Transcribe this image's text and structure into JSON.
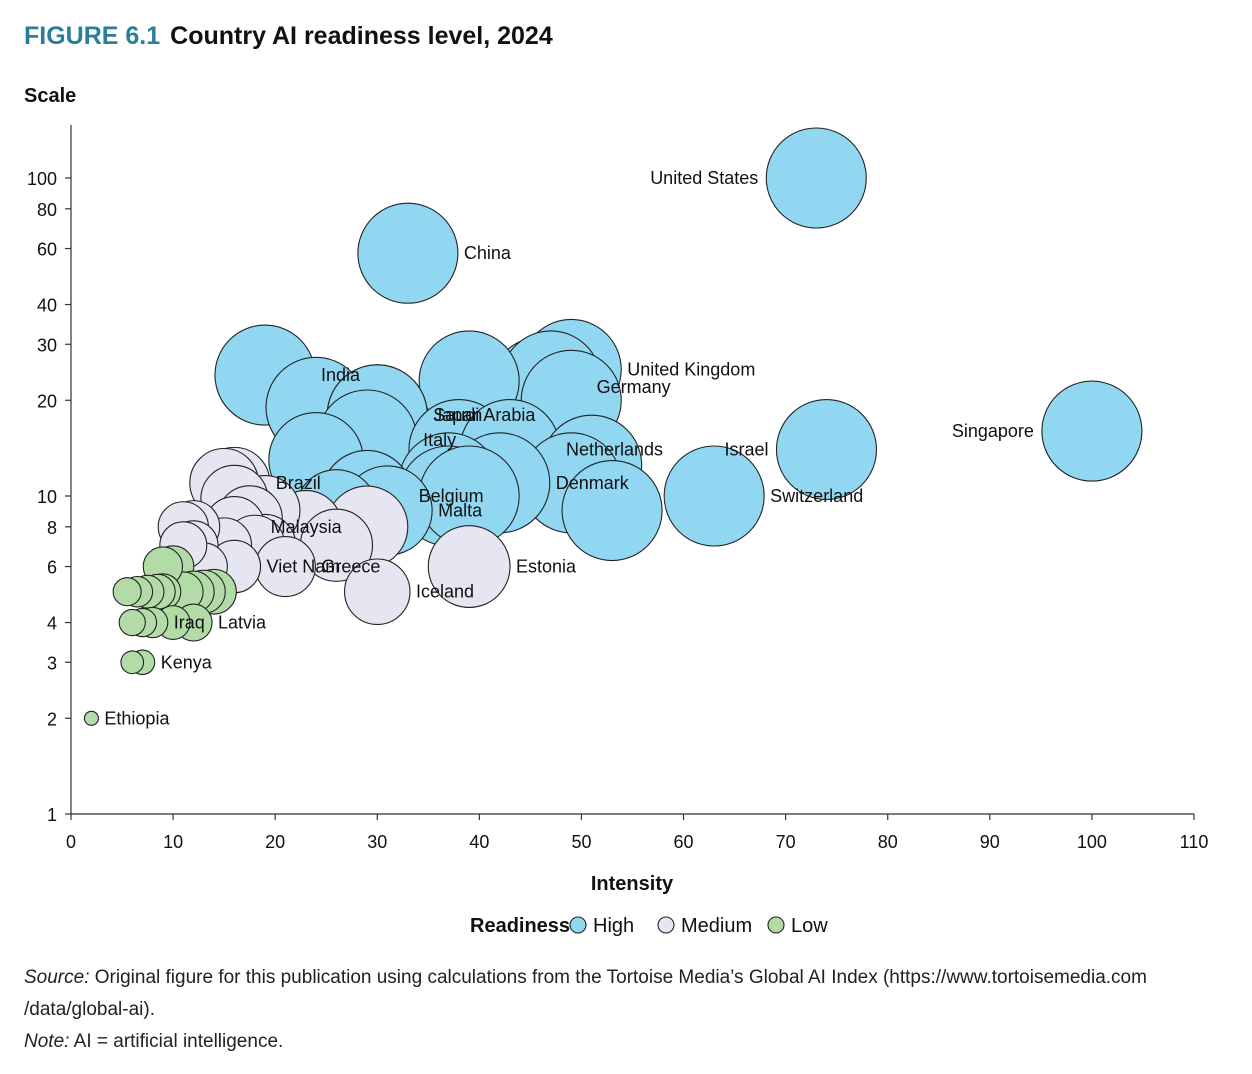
{
  "figure": {
    "number": "FIGURE 6.1",
    "title": "Country AI readiness level, 2024",
    "accent_color": "#2a7f98"
  },
  "notes": {
    "source_label": "Source:",
    "source_line1": "Original figure for this publication using calculations from the Tortoise Media’s Global AI Index (https://www.tortoisemedia.com",
    "source_line2": "/data/global-ai).",
    "note_label": "Note:",
    "note_text": "AI = artificial intelligence."
  },
  "chart_data": {
    "type": "scatter",
    "subtype": "bubble",
    "title": "Country AI readiness level, 2024",
    "xlabel": "Intensity",
    "ylabel": "Scale",
    "xlim": [
      0,
      110
    ],
    "ylim": [
      1,
      140
    ],
    "y_scale": "log",
    "x_ticks": [
      0,
      10,
      20,
      30,
      40,
      50,
      60,
      70,
      80,
      90,
      100,
      110
    ],
    "y_ticks": [
      1,
      2,
      3,
      4,
      6,
      8,
      10,
      20,
      30,
      40,
      60,
      80,
      100
    ],
    "grid": false,
    "legend": {
      "title": "Readiness",
      "placement": "bottom",
      "entries": [
        {
          "key": "high",
          "label": "High",
          "color": "#92d7f2"
        },
        {
          "key": "medium",
          "label": "Medium",
          "color": "#e6e5f2"
        },
        {
          "key": "low",
          "label": "Low",
          "color": "#b3dba7"
        }
      ]
    },
    "points": [
      {
        "x": 73,
        "y": 100,
        "group": "high",
        "label": "United States"
      },
      {
        "x": 33,
        "y": 58,
        "group": "high",
        "label": "China"
      },
      {
        "x": 100,
        "y": 16,
        "group": "high",
        "label": "Singapore"
      },
      {
        "x": 74,
        "y": 14,
        "group": "high",
        "label": "Israel"
      },
      {
        "x": 63,
        "y": 10,
        "group": "high",
        "label": "Switzerland"
      },
      {
        "x": 49,
        "y": 25,
        "group": "high",
        "label": "United Kingdom"
      },
      {
        "x": 46,
        "y": 22,
        "group": "high",
        "label": "Germany"
      },
      {
        "x": 47,
        "y": 23,
        "group": "high"
      },
      {
        "x": 49,
        "y": 20,
        "group": "high"
      },
      {
        "x": 19,
        "y": 24,
        "group": "high",
        "label": "India"
      },
      {
        "x": 39,
        "y": 23,
        "group": "high"
      },
      {
        "x": 24,
        "y": 19,
        "group": "high"
      },
      {
        "x": 30,
        "y": 18,
        "group": "high",
        "label": "Japan"
      },
      {
        "x": 30,
        "y": 18,
        "group": "high",
        "label": "Saudi Arabia"
      },
      {
        "x": 29,
        "y": 15,
        "group": "high",
        "label": "Italy"
      },
      {
        "x": 38,
        "y": 14,
        "group": "high"
      },
      {
        "x": 43,
        "y": 14,
        "group": "high",
        "label": "Netherlands"
      },
      {
        "x": 24,
        "y": 13,
        "group": "high"
      },
      {
        "x": 51,
        "y": 12.5,
        "group": "high"
      },
      {
        "x": 49,
        "y": 11,
        "group": "high"
      },
      {
        "x": 42,
        "y": 11,
        "group": "high",
        "label": "Denmark"
      },
      {
        "x": 37,
        "y": 11,
        "group": "high"
      },
      {
        "x": 37,
        "y": 10,
        "group": "high"
      },
      {
        "x": 39,
        "y": 10,
        "group": "high"
      },
      {
        "x": 29,
        "y": 10,
        "group": "high",
        "label": "Belgium"
      },
      {
        "x": 53,
        "y": 9,
        "group": "high"
      },
      {
        "x": 31,
        "y": 9,
        "group": "high",
        "label": "Malta"
      },
      {
        "x": 26,
        "y": 9,
        "group": "high"
      },
      {
        "x": 15,
        "y": 11,
        "group": "medium"
      },
      {
        "x": 16,
        "y": 11,
        "group": "medium",
        "label": "Brazil"
      },
      {
        "x": 16,
        "y": 9.8,
        "group": "medium"
      },
      {
        "x": 19,
        "y": 9,
        "group": "medium"
      },
      {
        "x": 17.5,
        "y": 8.5,
        "group": "medium"
      },
      {
        "x": 11,
        "y": 8,
        "group": "medium"
      },
      {
        "x": 12,
        "y": 8,
        "group": "medium"
      },
      {
        "x": 16,
        "y": 8,
        "group": "medium",
        "label": "Malaysia"
      },
      {
        "x": 23,
        "y": 8,
        "group": "medium"
      },
      {
        "x": 29,
        "y": 8,
        "group": "medium"
      },
      {
        "x": 11,
        "y": 7,
        "group": "medium"
      },
      {
        "x": 12,
        "y": 7,
        "group": "medium"
      },
      {
        "x": 15,
        "y": 7,
        "group": "medium"
      },
      {
        "x": 18,
        "y": 7,
        "group": "medium"
      },
      {
        "x": 19,
        "y": 7,
        "group": "medium"
      },
      {
        "x": 26,
        "y": 7,
        "group": "medium"
      },
      {
        "x": 13,
        "y": 6,
        "group": "medium"
      },
      {
        "x": 16,
        "y": 6,
        "group": "medium",
        "label": "Viet Nam"
      },
      {
        "x": 21,
        "y": 6,
        "group": "medium",
        "label": "Greece"
      },
      {
        "x": 39,
        "y": 6,
        "group": "medium",
        "label": "Estonia"
      },
      {
        "x": 30,
        "y": 5,
        "group": "medium",
        "label": "Iceland"
      },
      {
        "x": 9,
        "y": 6,
        "group": "low"
      },
      {
        "x": 10,
        "y": 6,
        "group": "low"
      },
      {
        "x": 5.5,
        "y": 5,
        "group": "low"
      },
      {
        "x": 6.5,
        "y": 5,
        "group": "low"
      },
      {
        "x": 7.5,
        "y": 5,
        "group": "low"
      },
      {
        "x": 8.5,
        "y": 5,
        "group": "low"
      },
      {
        "x": 9,
        "y": 5,
        "group": "low"
      },
      {
        "x": 11,
        "y": 5,
        "group": "low"
      },
      {
        "x": 12,
        "y": 5,
        "group": "low"
      },
      {
        "x": 13,
        "y": 5,
        "group": "low"
      },
      {
        "x": 14,
        "y": 5,
        "group": "low"
      },
      {
        "x": 6,
        "y": 4,
        "group": "low"
      },
      {
        "x": 7,
        "y": 4,
        "group": "low"
      },
      {
        "x": 8,
        "y": 4,
        "group": "low",
        "label": "Iraq"
      },
      {
        "x": 10,
        "y": 4,
        "group": "low"
      },
      {
        "x": 12,
        "y": 4,
        "group": "low",
        "label": "Latvia"
      },
      {
        "x": 6,
        "y": 3,
        "group": "low"
      },
      {
        "x": 7,
        "y": 3,
        "group": "low",
        "label": "Kenya"
      },
      {
        "x": 2,
        "y": 2,
        "group": "low",
        "label": "Ethiopia"
      }
    ]
  }
}
